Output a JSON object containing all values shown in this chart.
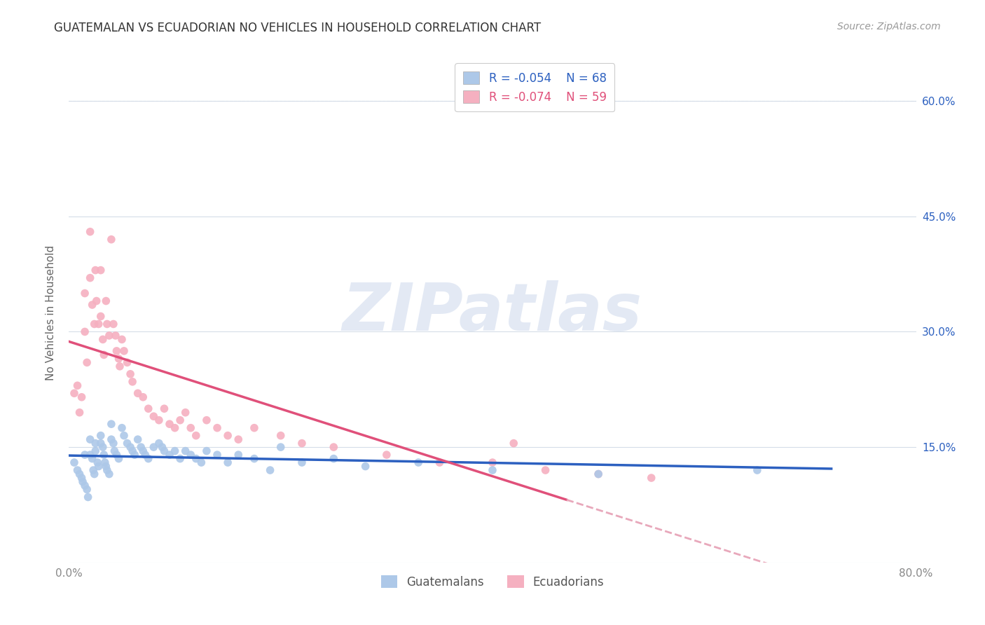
{
  "title": "GUATEMALAN VS ECUADORIAN NO VEHICLES IN HOUSEHOLD CORRELATION CHART",
  "source": "Source: ZipAtlas.com",
  "ylabel": "No Vehicles in Household",
  "ylim": [
    0.0,
    0.65
  ],
  "xlim": [
    0.0,
    0.8
  ],
  "guatemalan_R": "-0.054",
  "guatemalan_N": "68",
  "ecuadorian_R": "-0.074",
  "ecuadorian_N": "59",
  "guatemalan_color": "#adc8e8",
  "ecuadorian_color": "#f5b0c0",
  "guatemalan_line_color": "#2c60c0",
  "ecuadorian_line_color": "#e0507a",
  "ecuadorian_dashed_color": "#e8a8bb",
  "background_color": "#ffffff",
  "watermark": "ZIPatlas",
  "guatemalan_x": [
    0.005,
    0.008,
    0.01,
    0.012,
    0.013,
    0.015,
    0.015,
    0.017,
    0.018,
    0.02,
    0.02,
    0.022,
    0.023,
    0.024,
    0.025,
    0.025,
    0.027,
    0.028,
    0.03,
    0.03,
    0.032,
    0.033,
    0.034,
    0.035,
    0.036,
    0.038,
    0.04,
    0.04,
    0.042,
    0.043,
    0.045,
    0.047,
    0.05,
    0.052,
    0.055,
    0.058,
    0.06,
    0.062,
    0.065,
    0.068,
    0.07,
    0.072,
    0.075,
    0.08,
    0.085,
    0.088,
    0.09,
    0.095,
    0.1,
    0.105,
    0.11,
    0.115,
    0.12,
    0.125,
    0.13,
    0.14,
    0.15,
    0.16,
    0.175,
    0.19,
    0.2,
    0.22,
    0.25,
    0.28,
    0.33,
    0.4,
    0.5,
    0.65
  ],
  "guatemalan_y": [
    0.13,
    0.12,
    0.115,
    0.11,
    0.105,
    0.14,
    0.1,
    0.095,
    0.085,
    0.16,
    0.14,
    0.135,
    0.12,
    0.115,
    0.155,
    0.145,
    0.13,
    0.125,
    0.165,
    0.155,
    0.15,
    0.14,
    0.13,
    0.125,
    0.12,
    0.115,
    0.18,
    0.16,
    0.155,
    0.145,
    0.14,
    0.135,
    0.175,
    0.165,
    0.155,
    0.15,
    0.145,
    0.14,
    0.16,
    0.15,
    0.145,
    0.14,
    0.135,
    0.15,
    0.155,
    0.15,
    0.145,
    0.14,
    0.145,
    0.135,
    0.145,
    0.14,
    0.135,
    0.13,
    0.145,
    0.14,
    0.13,
    0.14,
    0.135,
    0.12,
    0.15,
    0.13,
    0.135,
    0.125,
    0.13,
    0.12,
    0.115,
    0.12
  ],
  "ecuadorian_x": [
    0.005,
    0.008,
    0.01,
    0.012,
    0.015,
    0.015,
    0.017,
    0.02,
    0.02,
    0.022,
    0.024,
    0.025,
    0.026,
    0.028,
    0.03,
    0.03,
    0.032,
    0.033,
    0.035,
    0.036,
    0.038,
    0.04,
    0.042,
    0.044,
    0.045,
    0.047,
    0.048,
    0.05,
    0.052,
    0.055,
    0.058,
    0.06,
    0.065,
    0.07,
    0.075,
    0.08,
    0.085,
    0.09,
    0.095,
    0.1,
    0.105,
    0.11,
    0.115,
    0.12,
    0.13,
    0.14,
    0.15,
    0.16,
    0.175,
    0.2,
    0.22,
    0.25,
    0.3,
    0.35,
    0.4,
    0.42,
    0.45,
    0.5,
    0.55
  ],
  "ecuadorian_y": [
    0.22,
    0.23,
    0.195,
    0.215,
    0.35,
    0.3,
    0.26,
    0.43,
    0.37,
    0.335,
    0.31,
    0.38,
    0.34,
    0.31,
    0.38,
    0.32,
    0.29,
    0.27,
    0.34,
    0.31,
    0.295,
    0.42,
    0.31,
    0.295,
    0.275,
    0.265,
    0.255,
    0.29,
    0.275,
    0.26,
    0.245,
    0.235,
    0.22,
    0.215,
    0.2,
    0.19,
    0.185,
    0.2,
    0.18,
    0.175,
    0.185,
    0.195,
    0.175,
    0.165,
    0.185,
    0.175,
    0.165,
    0.16,
    0.175,
    0.165,
    0.155,
    0.15,
    0.14,
    0.13,
    0.13,
    0.155,
    0.12,
    0.115,
    0.11
  ],
  "title_fontsize": 12,
  "axis_label_fontsize": 11,
  "tick_fontsize": 11,
  "legend_fontsize": 12,
  "source_fontsize": 10,
  "marker_size": 70,
  "marker_edge_width": 1.0,
  "grid_color": "#d5dde8",
  "title_color": "#333333",
  "tick_color_right": "#2c60c0",
  "tick_color_axes": "#888888"
}
